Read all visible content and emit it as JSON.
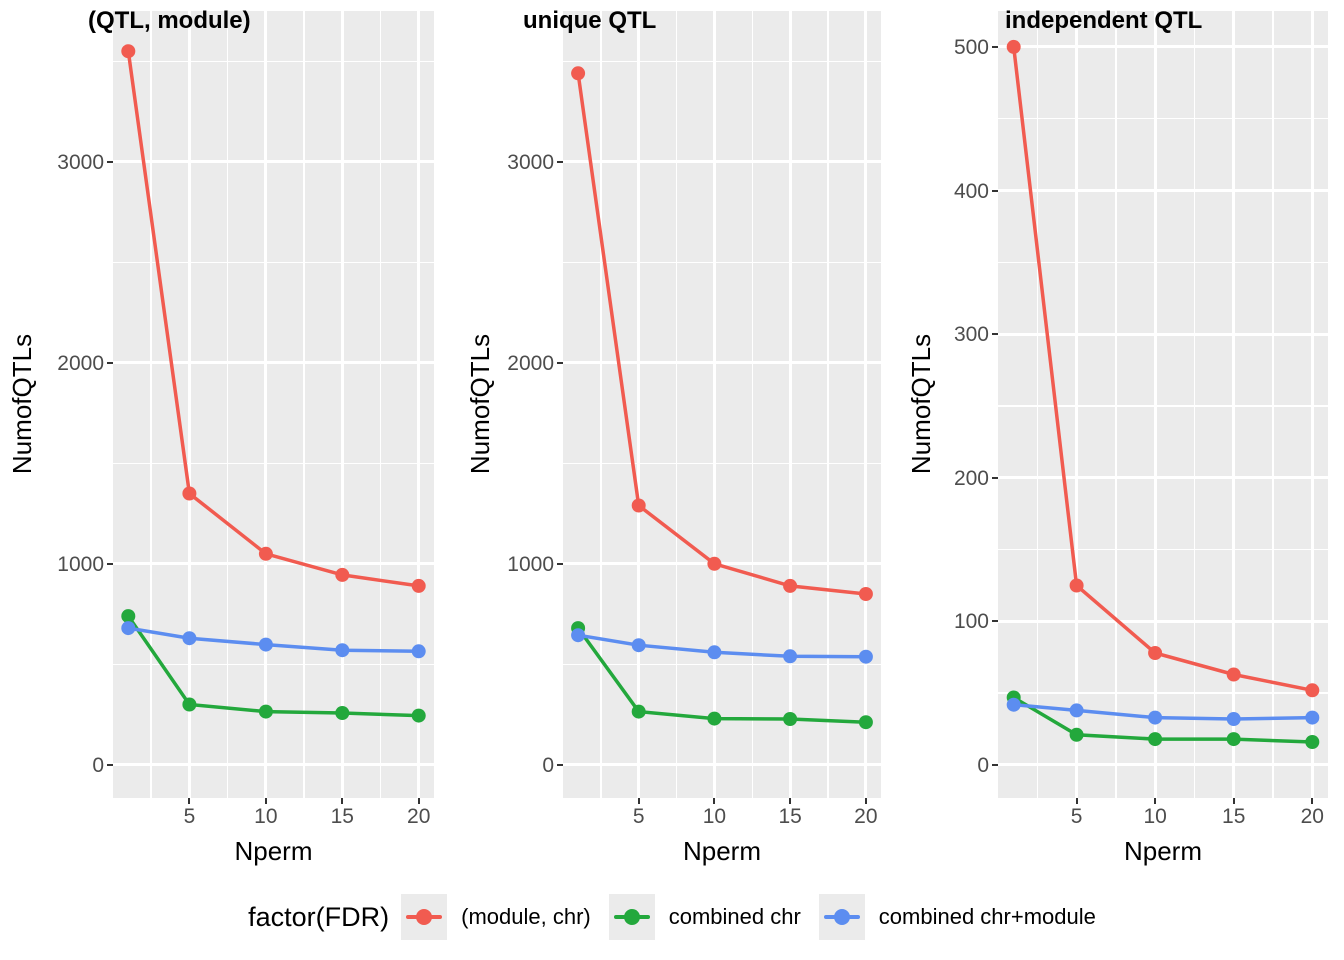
{
  "figure": {
    "x_axis_label": "Nperm",
    "y_axis_label": "NumofQTLs",
    "panel_background_color": "#EBEBEB",
    "gridline_color": "#ffffff",
    "tick_label_color": "#4d4d4d",
    "legend": {
      "title": "factor(FDR)",
      "position": "bottom",
      "entries": [
        {
          "label": "(module, chr)",
          "color": "#F15B50"
        },
        {
          "label": "combined chr",
          "color": "#23A83C"
        },
        {
          "label": "combined chr+module",
          "color": "#5C8DF0"
        }
      ]
    }
  },
  "chart_data": [
    {
      "type": "line",
      "title": "(QTL, module)",
      "xlabel": "Nperm",
      "ylabel": "NumofQTLs",
      "x": [
        1,
        5,
        10,
        15,
        20
      ],
      "x_ticks": [
        5,
        10,
        15,
        20
      ],
      "x_minor_ticks": [
        2.5,
        7.5,
        12.5,
        17.5
      ],
      "xlim": [
        0,
        21
      ],
      "y_ticks": [
        0,
        1000,
        2000,
        3000
      ],
      "ylim": [
        -165,
        3750
      ],
      "grid": true,
      "series": [
        {
          "name": "(module, chr)",
          "color": "#F15B50",
          "values": [
            3550,
            1350,
            1050,
            945,
            890
          ]
        },
        {
          "name": "combined chr",
          "color": "#23A83C",
          "values": [
            740,
            300,
            265,
            258,
            245
          ]
        },
        {
          "name": "combined chr+module",
          "color": "#5C8DF0",
          "values": [
            680,
            630,
            598,
            570,
            565
          ]
        }
      ]
    },
    {
      "type": "line",
      "title": "unique QTL",
      "xlabel": "Nperm",
      "ylabel": "NumofQTLs",
      "x": [
        1,
        5,
        10,
        15,
        20
      ],
      "x_ticks": [
        5,
        10,
        15,
        20
      ],
      "x_minor_ticks": [
        2.5,
        7.5,
        12.5,
        17.5
      ],
      "xlim": [
        0,
        21
      ],
      "y_ticks": [
        0,
        1000,
        2000,
        3000
      ],
      "ylim": [
        -165,
        3750
      ],
      "grid": true,
      "series": [
        {
          "name": "(module, chr)",
          "color": "#F15B50",
          "values": [
            3440,
            1290,
            1000,
            890,
            850
          ]
        },
        {
          "name": "combined chr",
          "color": "#23A83C",
          "values": [
            680,
            265,
            230,
            228,
            212
          ]
        },
        {
          "name": "combined chr+module",
          "color": "#5C8DF0",
          "values": [
            645,
            595,
            560,
            540,
            538
          ]
        }
      ]
    },
    {
      "type": "line",
      "title": "independent QTL",
      "xlabel": "Nperm",
      "ylabel": "NumofQTLs",
      "x": [
        1,
        5,
        10,
        15,
        20
      ],
      "x_ticks": [
        5,
        10,
        15,
        20
      ],
      "x_minor_ticks": [
        2.5,
        7.5,
        12.5,
        17.5
      ],
      "xlim": [
        0,
        21
      ],
      "y_ticks": [
        0,
        100,
        200,
        300,
        400,
        500
      ],
      "ylim": [
        -23,
        525
      ],
      "grid": true,
      "series": [
        {
          "name": "(module, chr)",
          "color": "#F15B50",
          "values": [
            500,
            125,
            78,
            63,
            52
          ]
        },
        {
          "name": "combined chr",
          "color": "#23A83C",
          "values": [
            47,
            21,
            18,
            18,
            16
          ]
        },
        {
          "name": "combined chr+module",
          "color": "#5C8DF0",
          "values": [
            42,
            38,
            33,
            32,
            33
          ]
        }
      ]
    }
  ]
}
